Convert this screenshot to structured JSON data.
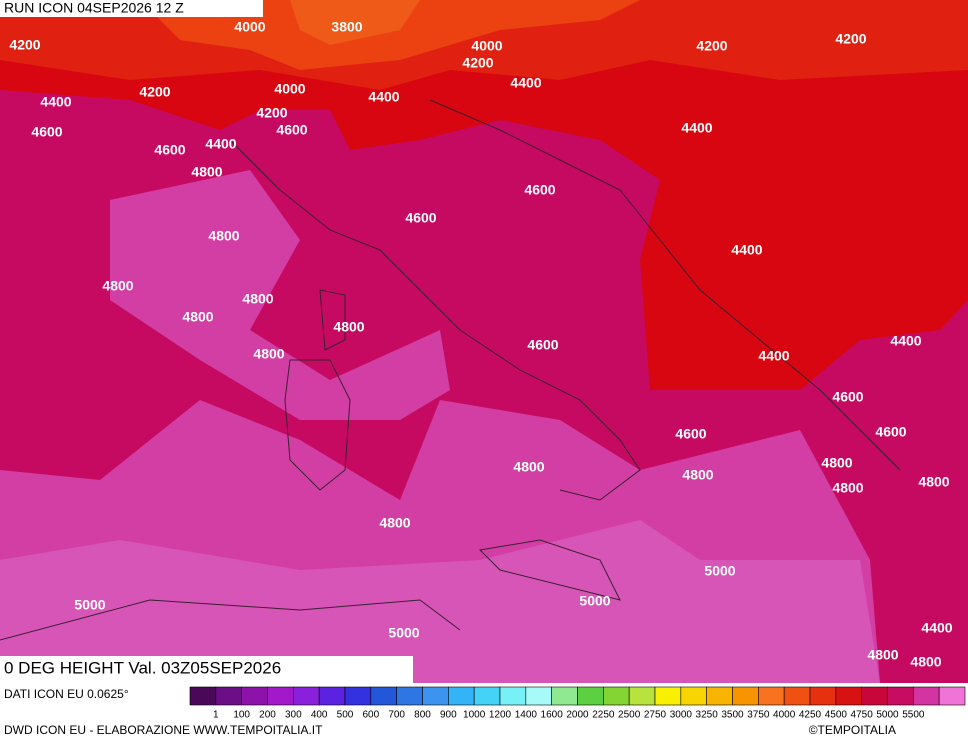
{
  "header": {
    "title": "RUN ICON 04SEP2026 12 Z",
    "field": "0 DEG HEIGHT Val. 03Z05SEP2026"
  },
  "contour_labels": [
    4000,
    3800,
    4200,
    4000,
    4200,
    4200,
    4200,
    4200,
    4000,
    4400,
    4400,
    4400,
    4200,
    4600,
    4600,
    4400,
    4600,
    4400,
    4800,
    4600,
    4600,
    4800,
    4400,
    4800,
    4800,
    4800,
    4800,
    4600,
    4800,
    4400,
    4400,
    4600,
    4600,
    4600,
    4800,
    4800,
    4800,
    4800,
    4800,
    4800,
    5000,
    5000,
    5000,
    5000,
    4400,
    4800,
    4800
  ],
  "legend": {
    "source": "DATI ICON EU 0.0625°",
    "colors": [
      "#4a0858",
      "#6c0f86",
      "#8c12aa",
      "#a418cc",
      "#8a20dc",
      "#5c22e2",
      "#3432e0",
      "#2456da",
      "#2e76e4",
      "#3c94f0",
      "#34b4f6",
      "#44d2f6",
      "#78f0f8",
      "#a8faf8",
      "#90e890",
      "#5cd040",
      "#84d434",
      "#b8e23e",
      "#f8f000",
      "#f8d400",
      "#f8b400",
      "#f89400",
      "#f87220",
      "#f05012",
      "#e63010",
      "#d81212",
      "#c8063a",
      "#c80c62",
      "#d434a2",
      "#f074d8"
    ],
    "labels": [
      "1",
      "100",
      "200",
      "300",
      "400",
      "500",
      "600",
      "700",
      "800",
      "900",
      "1000",
      "1200",
      "1400",
      "1600",
      "2000",
      "2250",
      "2500",
      "2750",
      "3000",
      "3250",
      "3500",
      "3750",
      "4000",
      "4250",
      "4500",
      "4750",
      "5000",
      "5500"
    ]
  },
  "footer": {
    "credit": "DWD ICON EU - ELABORAZIONE WWW.TEMPOITALIA.IT",
    "brand": "©TEMPOITALIA"
  }
}
